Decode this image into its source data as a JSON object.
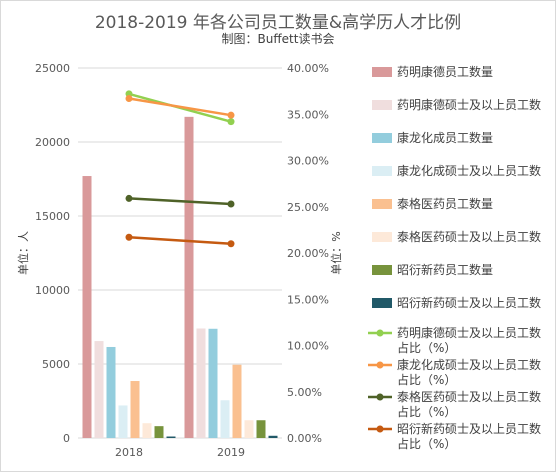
{
  "chart_data": {
    "type": "bar",
    "title": "2018-2019 年各公司员工数量&高学历人才比例",
    "subtitle": "制图：Buffett读书会",
    "categories": [
      "2018",
      "2019"
    ],
    "ylabel": "单位：人",
    "y2label": "单位：%",
    "ylim": [
      0,
      25000
    ],
    "y2lim": [
      0,
      0.4
    ],
    "yticks": [
      "0",
      "5000",
      "10000",
      "15000",
      "20000",
      "25000"
    ],
    "y2ticks": [
      "0.00%",
      "5.00%",
      "10.00%",
      "15.00%",
      "20.00%",
      "25.00%",
      "30.00%",
      "35.00%",
      "40.00%"
    ],
    "grid": true,
    "legend_position": "right",
    "series": [
      {
        "name": "药明康德员工数量",
        "kind": "bar",
        "axis": "left",
        "color": "#d9999a",
        "values": [
          17700,
          21700
        ]
      },
      {
        "name": "药明康德硕士及以上员工数",
        "kind": "bar",
        "axis": "left",
        "color": "#f0dede",
        "values": [
          6550,
          7400
        ]
      },
      {
        "name": "康龙化成员工数量",
        "kind": "bar",
        "axis": "left",
        "color": "#93cddd",
        "values": [
          6150,
          7380
        ]
      },
      {
        "name": "康龙化成硕士及以上员工数",
        "kind": "bar",
        "axis": "left",
        "color": "#dbeef4",
        "values": [
          2200,
          2550
        ]
      },
      {
        "name": "泰格医药员工数量",
        "kind": "bar",
        "axis": "left",
        "color": "#fac090",
        "values": [
          3850,
          4950
        ]
      },
      {
        "name": "泰格医药硕士及以上员工数",
        "kind": "bar",
        "axis": "left",
        "color": "#fde9d9",
        "values": [
          1000,
          1200
        ]
      },
      {
        "name": "昭衍新药员工数量",
        "kind": "bar",
        "axis": "left",
        "color": "#77933c",
        "values": [
          800,
          1200
        ]
      },
      {
        "name": "昭衍新药硕士及以上员工数",
        "kind": "bar",
        "axis": "left",
        "color": "#215968",
        "values": [
          100,
          150
        ]
      },
      {
        "name": "药明康德硕士及以上员工数占比（%）",
        "kind": "line",
        "axis": "right",
        "color": "#92d050",
        "values": [
          0.372,
          0.342
        ]
      },
      {
        "name": "康龙化成硕士及以上员工数占比（%）",
        "kind": "line",
        "axis": "right",
        "color": "#f79646",
        "values": [
          0.367,
          0.349
        ]
      },
      {
        "name": "泰格医药硕士及以上员工数占比（%）",
        "kind": "line",
        "axis": "right",
        "color": "#4f6228",
        "values": [
          0.259,
          0.253
        ]
      },
      {
        "name": "昭衍新药硕士及以上员工数占比（%）",
        "kind": "line",
        "axis": "right",
        "color": "#c55a11",
        "values": [
          0.217,
          0.21
        ]
      }
    ]
  }
}
